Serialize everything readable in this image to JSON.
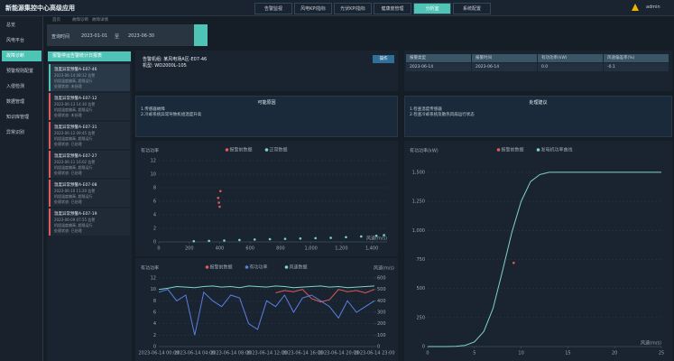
{
  "header": {
    "title": "新能源集控中心高级应用",
    "nav": [
      "告警监视",
      "风电KPI指标",
      "光伏KPI指标",
      "健康度管理",
      "分析室",
      "系统配置"
    ],
    "active_nav": 4,
    "user": "admin"
  },
  "sidebar": {
    "items": [
      "总览",
      "风电平台",
      "故障诊断",
      "预警规则配置",
      "入侵检测",
      "数据管理",
      "知识库管理",
      "异常识别"
    ],
    "active": 2
  },
  "breadcrumb": [
    "首页",
    "故障诊断",
    "故障详情"
  ],
  "filter": {
    "label": "查询时间",
    "start": "2023-01-01",
    "separator": "至",
    "end": "2023-06-30"
  },
  "alarm_list": {
    "title": "报警停运告警统计日报表",
    "items": [
      {
        "title": "温度异常预警A-E07-46",
        "lines": [
          "2023-06-14 08:12 告警",
          "机组温度偏高, 超限运行",
          "处理状态: 未处理"
        ]
      },
      {
        "title": "温度异常预警A-E07-12",
        "lines": [
          "2023-06-13 14:30 告警",
          "机组温度偏高, 超限运行",
          "处理状态: 未处理"
        ]
      },
      {
        "title": "温度异常预警A-E07-31",
        "lines": [
          "2023-06-12 09:45 告警",
          "机组温度偏高, 超限运行",
          "处理状态: 已处理"
        ]
      },
      {
        "title": "温度异常预警A-E07-27",
        "lines": [
          "2023-06-11 16:02 告警",
          "机组温度偏高, 超限运行",
          "处理状态: 已处理"
        ]
      },
      {
        "title": "温度异常预警A-E07-08",
        "lines": [
          "2023-06-10 11:20 告警",
          "机组温度偏高, 超限运行",
          "处理状态: 已处理"
        ]
      },
      {
        "title": "温度异常预警A-E07-19",
        "lines": [
          "2023-06-09 07:55 告警",
          "机组温度偏高, 超限运行",
          "处理状态: 已处理"
        ]
      }
    ]
  },
  "detail": {
    "lines": [
      "告警机组: 某风电场A区-E07-46",
      "机型: WD2000L-105"
    ],
    "button": "操作"
  },
  "summary_table": {
    "headers": [
      "报警类型",
      "报警时间",
      "有功功率(kW)",
      "风速偏差率(%)"
    ],
    "rows": [
      [
        "2023-06-14",
        "2023-06-14",
        "0.0",
        "-0.1"
      ]
    ]
  },
  "causes": {
    "title": "可能原因",
    "lines": [
      "1.传感器故障",
      "2.冷却系统异常导致机组温度升高"
    ]
  },
  "advice": {
    "title": "处理建议",
    "lines": [
      "1.检查温度传感器",
      "2.检查冷却系统及散热风扇运行状态"
    ]
  },
  "charts": [
    {
      "type": "scatter",
      "ylabel": "有功功率",
      "xlabel": "风速(m/s)",
      "xlim": [
        0,
        1500
      ],
      "xticks": [
        0,
        200,
        400,
        600,
        800,
        {
          "value": 1000,
          "label": "1,000"
        },
        {
          "value": 1200,
          "label": "1,200"
        },
        {
          "value": 1400,
          "label": "1,400"
        }
      ],
      "ylim": [
        0,
        12
      ],
      "yticks": [
        0,
        2,
        4,
        6,
        8,
        10,
        12
      ],
      "grid": true,
      "series": [
        {
          "name": "报警前数据",
          "color": "#e05a5a",
          "x": [
            390,
            395,
            400,
            405
          ],
          "values": [
            6.5,
            5.8,
            5.2,
            7.5
          ]
        },
        {
          "name": "正常数据",
          "color": "#7fd3c8",
          "x": [
            230,
            330,
            430,
            530,
            630,
            730,
            830,
            930,
            1030,
            1130,
            1230,
            1330,
            1430,
            1480
          ],
          "values": [
            0.1,
            0.15,
            0.2,
            0.28,
            0.35,
            0.4,
            0.45,
            0.5,
            0.55,
            0.6,
            0.7,
            0.8,
            0.9,
            1.0
          ]
        }
      ]
    },
    {
      "type": "line",
      "ylabel": "有功功率",
      "y2label": "风速(m/s)",
      "categories": [
        "2023-06-14 00:00",
        null,
        null,
        null,
        "2023-06-14 04:00",
        null,
        null,
        null,
        "2023-06-14 08:00",
        null,
        null,
        null,
        "2023-06-14 12:00",
        null,
        null,
        null,
        "2023-06-14 16:00",
        null,
        null,
        null,
        "2023-06-14 20:00",
        null,
        null,
        null,
        "2023-06-14 23:00"
      ],
      "ylim": [
        0,
        12
      ],
      "yticks": [
        0,
        2,
        4,
        6,
        8,
        10,
        12
      ],
      "y2lim": [
        0,
        600
      ],
      "y2ticks": [
        0,
        100,
        200,
        300,
        400,
        500,
        600
      ],
      "grid": true,
      "series": [
        {
          "name": "报警前数据",
          "color": "#e05a5a",
          "axis": "y2",
          "values": [
            null,
            null,
            null,
            null,
            null,
            null,
            null,
            null,
            null,
            null,
            null,
            null,
            null,
            470,
            490,
            480,
            500,
            420,
            390,
            410,
            500,
            480,
            490,
            470,
            500
          ]
        },
        {
          "name": "有功功率",
          "color": "#5b7fe0",
          "values": [
            9.5,
            10,
            8,
            9,
            2,
            9.5,
            8,
            7,
            9,
            8.5,
            4,
            3,
            8,
            7,
            9,
            6,
            8.5,
            9,
            8,
            7,
            5,
            8,
            6,
            7,
            8
          ]
        },
        {
          "name": "风速数据",
          "color": "#7fd3c8",
          "values": [
            10,
            10.2,
            10.5,
            10.4,
            10.3,
            10.5,
            10.6,
            10.4,
            10.5,
            10.3,
            10.6,
            10.5,
            10.4,
            10.6,
            10.5,
            10.3,
            10.4,
            10.5,
            10.6,
            10.4,
            10.5,
            10.3,
            10.4,
            10.5,
            10.6
          ]
        }
      ]
    },
    {
      "type": "line",
      "ylabel": "有功功率(kW)",
      "xlabel": "风速(m/s)",
      "xlim": [
        0,
        25
      ],
      "xticks": [
        0,
        5,
        10,
        15,
        20,
        25
      ],
      "ylim": [
        0,
        1600
      ],
      "yticks": [
        0,
        250,
        500,
        750,
        {
          "value": 1000,
          "label": "1,000"
        },
        {
          "value": 1250,
          "label": "1,250"
        },
        {
          "value": 1500,
          "label": "1,500"
        }
      ],
      "grid": true,
      "series": [
        {
          "name": "报警前数据",
          "color": "#e05a5a",
          "marker": true,
          "x": [
            9.2
          ],
          "values": [
            720
          ]
        },
        {
          "name": "发电机功率曲线",
          "color": "#7fd3c8",
          "x": [
            0,
            1,
            2,
            3,
            4,
            5,
            6,
            7,
            8,
            9,
            10,
            11,
            12,
            13,
            14,
            15,
            16,
            17,
            18,
            19,
            20,
            21,
            22,
            23,
            24,
            25
          ],
          "values": [
            0,
            0,
            0,
            2,
            10,
            40,
            130,
            330,
            650,
            980,
            1250,
            1420,
            1480,
            1500,
            1500,
            1500,
            1500,
            1500,
            1500,
            1500,
            1500,
            1500,
            1500,
            1500,
            1500,
            1500
          ]
        }
      ]
    }
  ]
}
